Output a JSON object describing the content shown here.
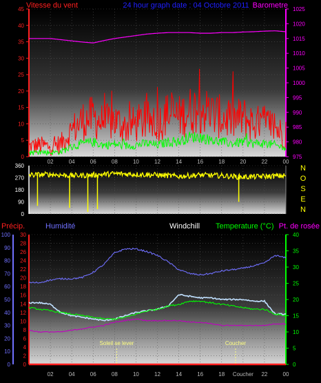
{
  "colors": {
    "wind_speed": "#ff0000",
    "wind_gust": "#00ff00",
    "barometer": "#ff00ff",
    "wind_dir": "#ffff00",
    "humidity": "#7070ff",
    "windchill": "#c0e0ff",
    "temperature": "#00ff00",
    "dewpoint": "#c000c0",
    "precip": "#ff2020",
    "sun": "#ffff80"
  },
  "chart_data": [
    {
      "type": "line",
      "name": "wind_barometer",
      "title": "24 hour graph date : 04 Octobre 2011",
      "y_left_label": "Vitesse du vent",
      "y_right_label": "Barometre",
      "x_ticks": [
        "02",
        "04",
        "06",
        "08",
        "10",
        "12",
        "14",
        "16",
        "18",
        "20",
        "22",
        "00"
      ],
      "y_left_ticks": [
        "0",
        "5",
        "10",
        "15",
        "20",
        "25",
        "30",
        "35",
        "40",
        "45"
      ],
      "y_right_ticks": [
        "975",
        "980",
        "985",
        "990",
        "995",
        "1000",
        "1005",
        "1010",
        "1015",
        "1020",
        "1025"
      ],
      "y_left_range": [
        0,
        45
      ],
      "y_right_range": [
        975,
        1025
      ],
      "hours": [
        0,
        1,
        2,
        3,
        4,
        5,
        6,
        7,
        8,
        9,
        10,
        11,
        12,
        13,
        14,
        15,
        16,
        17,
        18,
        19,
        20,
        21,
        22,
        23,
        24
      ],
      "series": [
        {
          "key": "barometer",
          "axis": "right",
          "values": [
            1015,
            1015,
            1015,
            1014.6,
            1014.2,
            1013.8,
            1013.5,
            1014.3,
            1015,
            1015.5,
            1016,
            1016.5,
            1016.8,
            1017,
            1017,
            1017,
            1016.8,
            1016.8,
            1017,
            1017,
            1017.2,
            1017.3,
            1017.5,
            1017.6,
            1017.3
          ]
        },
        {
          "key": "wind_speed",
          "axis": "left",
          "values": [
            3,
            3.5,
            3,
            4,
            8,
            11,
            12,
            10,
            11,
            9,
            10,
            11,
            10,
            13,
            12,
            14,
            15,
            13,
            12,
            11,
            12,
            10,
            10,
            9,
            6
          ]
        },
        {
          "key": "wind_gust",
          "axis": "left",
          "values": [
            1,
            1.5,
            1.2,
            1.5,
            3,
            4,
            4.5,
            3.5,
            3.8,
            3.2,
            3.6,
            4,
            3.5,
            4.5,
            4.5,
            6,
            6,
            5,
            4.5,
            4,
            4.5,
            4,
            4,
            3.5,
            2.5
          ]
        }
      ]
    },
    {
      "type": "line",
      "name": "wind_direction",
      "y_ticks": [
        "0",
        "90",
        "180",
        "270",
        "360"
      ],
      "y_range": [
        0,
        360
      ],
      "compass_labels": [
        "N",
        "O",
        "S",
        "E",
        "N"
      ],
      "hours": [
        0,
        2,
        4,
        6,
        8,
        10,
        12,
        14,
        16,
        18,
        20,
        22,
        24
      ],
      "series": [
        {
          "key": "wind_dir",
          "values": [
            290,
            295,
            285,
            290,
            300,
            295,
            290,
            280,
            290,
            285,
            275,
            280,
            285
          ]
        }
      ],
      "dips": [
        {
          "hour": 0.8,
          "value": 60
        },
        {
          "hour": 3.8,
          "value": 45
        },
        {
          "hour": 5.5,
          "value": 15
        },
        {
          "hour": 6.4,
          "value": 35
        },
        {
          "hour": 19.6,
          "value": 90
        }
      ]
    },
    {
      "type": "line",
      "name": "humidity_temperature",
      "legend": [
        "Précip.",
        "Humidité",
        "Windchill",
        "Temperature (°C)",
        "Pt. de rosée"
      ],
      "x_ticks": [
        "02",
        "04",
        "06",
        "08",
        "10",
        "12",
        "14",
        "16",
        "18",
        "Coucher",
        "22",
        "00"
      ],
      "precip_ticks": [
        "0",
        "2",
        "4",
        "6",
        "8",
        "10",
        "12",
        "14",
        "16",
        "18",
        "20",
        "22",
        "24",
        "26",
        "28",
        "30"
      ],
      "humidity_ticks": [
        "0",
        "10",
        "20",
        "30",
        "40",
        "50",
        "60",
        "70",
        "80",
        "90",
        "100"
      ],
      "temp_ticks": [
        "0",
        "5",
        "10",
        "15",
        "20",
        "25",
        "30",
        "35",
        "40"
      ],
      "humidity_range": [
        0,
        100
      ],
      "temp_range": [
        0,
        40
      ],
      "precip_range": [
        0,
        30
      ],
      "sun_events": [
        {
          "label": "Soleil se lever",
          "hour": 8.2
        },
        {
          "label": "Coucher",
          "hour": 19.3
        }
      ],
      "hours": [
        0,
        1,
        2,
        3,
        4,
        5,
        6,
        7,
        8,
        9,
        10,
        11,
        12,
        13,
        14,
        15,
        16,
        17,
        18,
        19,
        20,
        21,
        22,
        23,
        24
      ],
      "series": [
        {
          "key": "humidity",
          "axis": "humidity",
          "values": [
            63,
            63,
            65,
            66,
            66,
            67,
            71,
            77,
            86,
            89,
            89,
            87,
            84,
            79,
            73,
            70,
            69,
            70,
            72,
            73,
            74,
            76,
            78,
            84,
            82
          ]
        },
        {
          "key": "windchill",
          "axis": "temp",
          "values": [
            19,
            19,
            18.5,
            16,
            15,
            14.5,
            14,
            13.5,
            14,
            15,
            16,
            16.5,
            17,
            18,
            21.5,
            21,
            20.5,
            20.5,
            20,
            20,
            20,
            19.5,
            19.5,
            15.5,
            15.5
          ]
        },
        {
          "key": "temperature",
          "axis": "temp",
          "values": [
            17.5,
            17,
            16.5,
            16,
            15.5,
            15,
            14.5,
            14,
            14,
            14.5,
            15.5,
            16.5,
            17,
            18,
            18.5,
            19.5,
            19.5,
            19,
            18.5,
            18,
            17.5,
            17,
            17,
            15.5,
            15
          ]
        },
        {
          "key": "dewpoint",
          "axis": "temp",
          "values": [
            10.5,
            10,
            10,
            10,
            10.5,
            11,
            11.5,
            12,
            13,
            13.5,
            14,
            13.5,
            13.5,
            13.5,
            13.5,
            13,
            13,
            12.5,
            12,
            12,
            12,
            12,
            12,
            12.5,
            12.5
          ]
        },
        {
          "key": "precip",
          "axis": "precip",
          "values": [
            0,
            0,
            0,
            0,
            0,
            0,
            0,
            0,
            0,
            0,
            0,
            0,
            0,
            0,
            0,
            0,
            0,
            0,
            0,
            0,
            0,
            0,
            0,
            0,
            0
          ]
        }
      ]
    }
  ]
}
